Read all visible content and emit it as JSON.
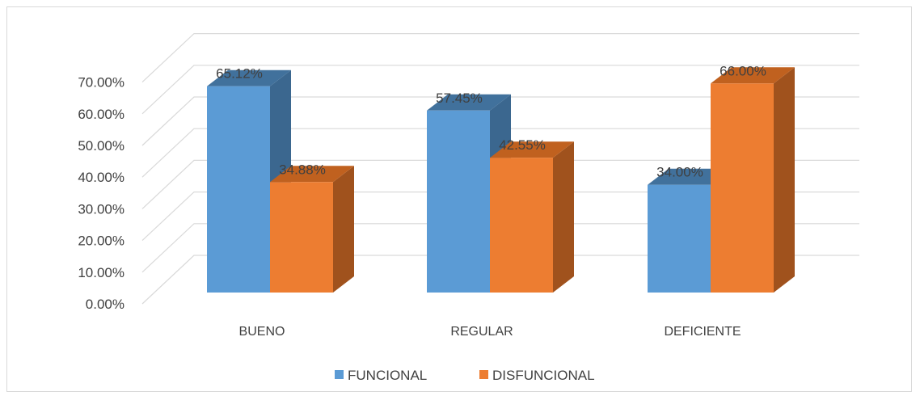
{
  "chart_data": {
    "type": "bar",
    "categories": [
      "BUENO",
      "REGULAR",
      "DEFICIENTE"
    ],
    "series": [
      {
        "name": "FUNCIONAL",
        "values": [
          65.12,
          57.45,
          34.0
        ],
        "labels": [
          "65.12%",
          "57.45%",
          "34.00%"
        ]
      },
      {
        "name": "DISFUNCIONAL",
        "values": [
          34.88,
          42.55,
          66.0
        ],
        "labels": [
          "34.88%",
          "42.55%",
          "66.00%"
        ]
      }
    ],
    "yticks": [
      "0.00%",
      "10.00%",
      "20.00%",
      "30.00%",
      "40.00%",
      "50.00%",
      "60.00%",
      "70.00%"
    ],
    "ylim": [
      0,
      70
    ],
    "grid": true,
    "legend_position": "bottom",
    "colors": {
      "FUNCIONAL": {
        "front": "#5b9bd5",
        "top": "#41719c",
        "side": "#3b678f"
      },
      "DISFUNCIONAL": {
        "front": "#ed7d31",
        "top": "#c0611f",
        "side": "#a0521d"
      }
    }
  }
}
